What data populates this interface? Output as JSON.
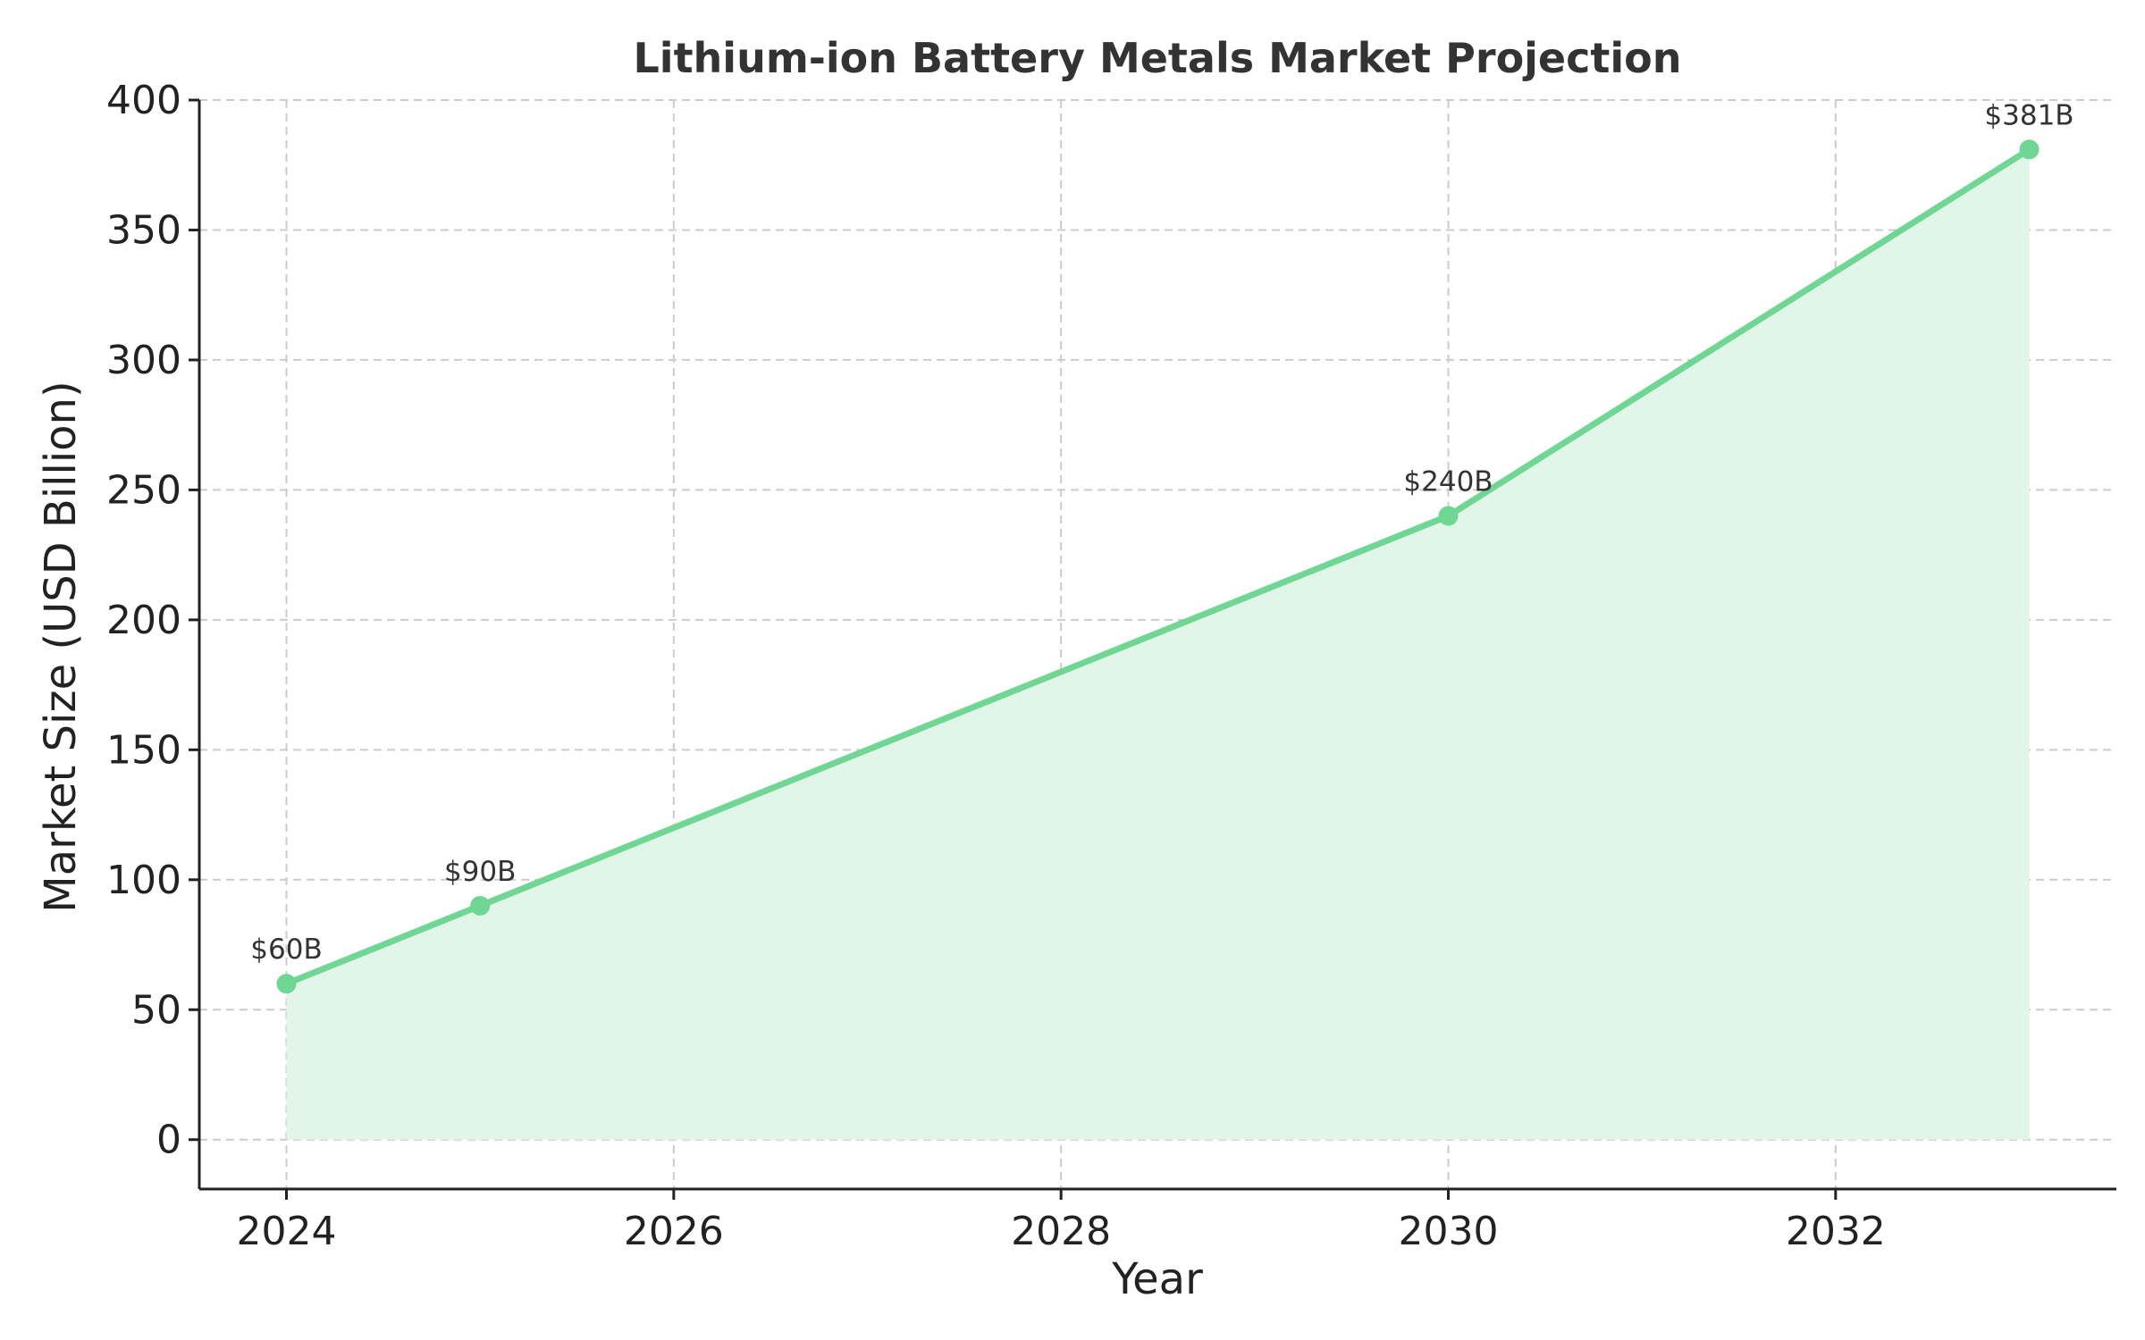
{
  "chart_data": {
    "type": "area",
    "title": "Lithium-ion Battery Metals Market Projection",
    "xlabel": "Year",
    "ylabel": "Market Size (USD Billion)",
    "xlim": [
      2023.55,
      2033.45
    ],
    "ylim": [
      -19,
      400
    ],
    "xticks": [
      2024,
      2026,
      2028,
      2030,
      2032
    ],
    "xtick_labels": [
      "2024",
      "2026",
      "2028",
      "2030",
      "2032"
    ],
    "yticks": [
      0,
      50,
      100,
      150,
      200,
      250,
      300,
      350,
      400
    ],
    "ytick_labels": [
      "0",
      "50",
      "100",
      "150",
      "200",
      "250",
      "300",
      "350",
      "400"
    ],
    "grid": true,
    "series": [
      {
        "x": [
          2024,
          2025,
          2030,
          2033
        ],
        "values": [
          60,
          90,
          240,
          381
        ],
        "point_labels": [
          "$60B",
          "$90B",
          "$240B",
          "$381B"
        ],
        "color": "#6fd693",
        "fill_color": "#e1f5e8"
      }
    ]
  }
}
